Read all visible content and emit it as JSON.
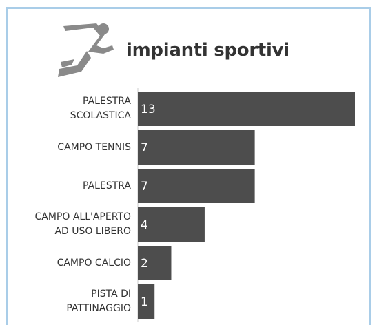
{
  "chart_data": {
    "type": "bar",
    "orientation": "horizontal",
    "title": "impianti sportivi",
    "categories": [
      "PALESTRA\nSCOLASTICA",
      "CAMPO TENNIS",
      "PALESTRA",
      "CAMPO ALL'APERTO\nAD USO LIBERO",
      "CAMPO CALCIO",
      "PISTA DI\nPATTINAGGIO"
    ],
    "values": [
      13,
      7,
      7,
      4,
      2,
      1
    ],
    "color": "#4d4d4d",
    "xlim": [
      0,
      13
    ]
  }
}
